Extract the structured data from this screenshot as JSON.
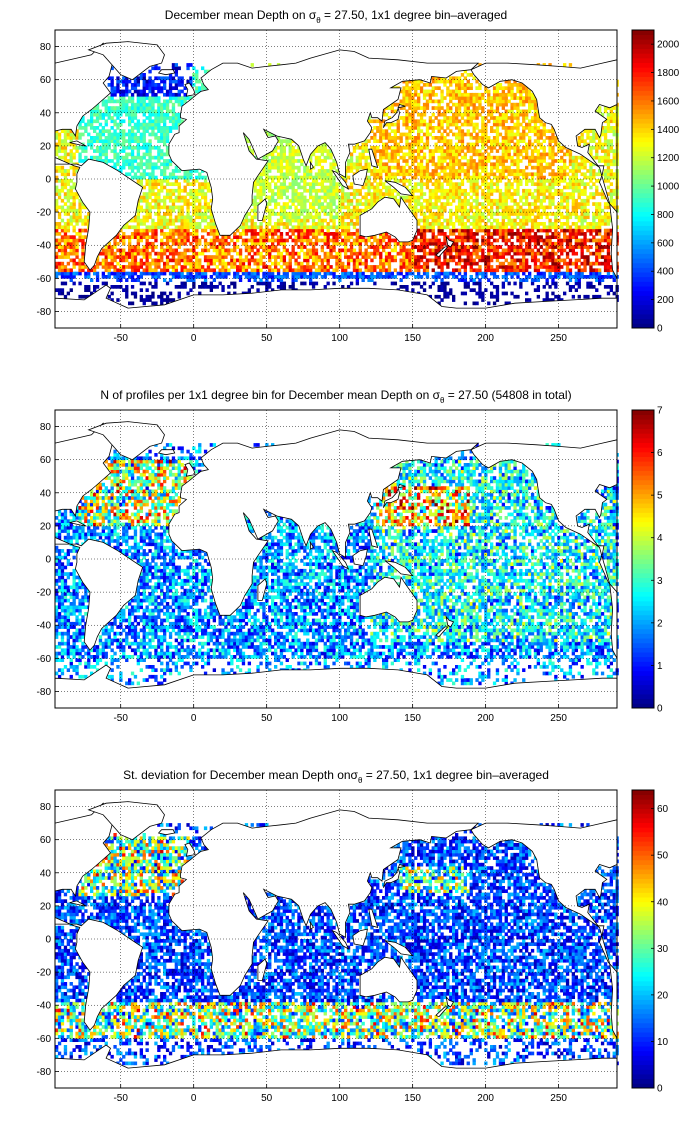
{
  "chart_data": [
    {
      "type": "heatmap",
      "title": "December mean Depth on σθ = 27.50, 1x1 degree bin–averaged",
      "title_parts": {
        "pre": "December mean Depth on σ",
        "sub": "θ",
        "post": " = 27.50, 1x1 degree bin–averaged"
      },
      "xlim": [
        -95,
        290
      ],
      "ylim": [
        -90,
        90
      ],
      "xticks": [
        -50,
        0,
        50,
        100,
        150,
        200,
        250
      ],
      "yticks": [
        80,
        60,
        40,
        20,
        0,
        -20,
        -40,
        -60,
        -80
      ],
      "colorbar": {
        "min": 0,
        "max": 2100,
        "ticks": [
          0,
          200,
          400,
          600,
          800,
          1000,
          1200,
          1400,
          1600,
          1800,
          2000
        ]
      },
      "colormap": "jet",
      "grid": true,
      "field": "mean_depth"
    },
    {
      "type": "heatmap",
      "title": "N of profiles per 1x1 degree bin for December mean Depth on σθ = 27.50 (54808 in total)",
      "title_parts": {
        "pre": "N of profiles per 1x1 degree bin for December mean Depth on σ",
        "sub": "θ",
        "post": " = 27.50 (54808 in total)"
      },
      "xlim": [
        -95,
        290
      ],
      "ylim": [
        -90,
        90
      ],
      "xticks": [
        -50,
        0,
        50,
        100,
        150,
        200,
        250
      ],
      "yticks": [
        80,
        60,
        40,
        20,
        0,
        -20,
        -40,
        -60,
        -80
      ],
      "colorbar": {
        "min": 0,
        "max": 7,
        "ticks": [
          0,
          1,
          2,
          3,
          4,
          5,
          6,
          7
        ]
      },
      "colormap": "jet",
      "grid": true,
      "field": "profile_count"
    },
    {
      "type": "heatmap",
      "title": "St. deviation for December mean Depth onσθ = 27.50, 1x1 degree bin–averaged",
      "title_parts": {
        "pre": "St. deviation for December mean Depth onσ",
        "sub": "θ",
        "post": " = 27.50, 1x1 degree bin–averaged"
      },
      "xlim": [
        -95,
        290
      ],
      "ylim": [
        -90,
        90
      ],
      "xticks": [
        -50,
        0,
        50,
        100,
        150,
        200,
        250
      ],
      "yticks": [
        80,
        60,
        40,
        20,
        0,
        -20,
        -40,
        -60,
        -80
      ],
      "colorbar": {
        "min": 0,
        "max": 64,
        "ticks": [
          0,
          10,
          20,
          30,
          40,
          50,
          60
        ]
      },
      "colormap": "jet",
      "grid": true,
      "field": "std_dev"
    }
  ]
}
